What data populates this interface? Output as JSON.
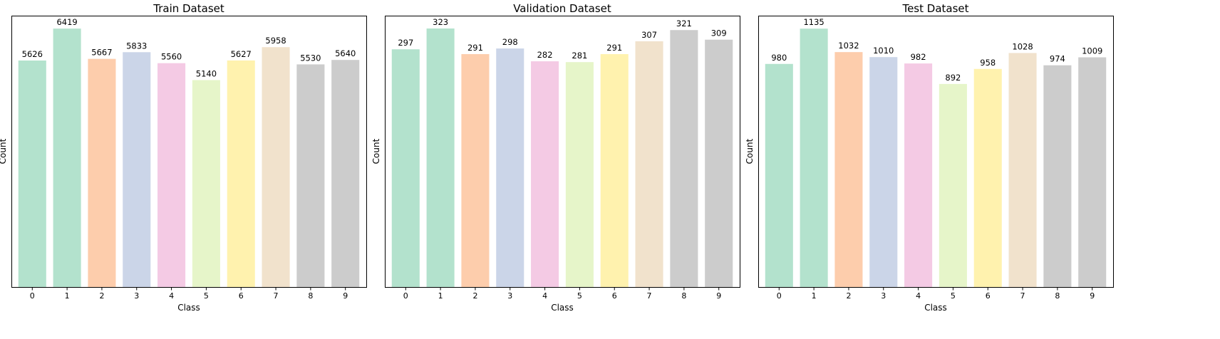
{
  "chart_data": [
    {
      "type": "bar",
      "title": "Train Dataset",
      "xlabel": "Class",
      "ylabel": "Count",
      "categories": [
        "0",
        "1",
        "2",
        "3",
        "4",
        "5",
        "6",
        "7",
        "8",
        "9"
      ],
      "values": [
        5626,
        6419,
        5667,
        5833,
        5560,
        5140,
        5627,
        5958,
        5530,
        5640
      ],
      "ylim": [
        0,
        6740
      ],
      "grid": false,
      "colors": [
        "#b3e2cd",
        "#b3e2cd",
        "#fdcdac",
        "#cbd5e8",
        "#f4cae4",
        "#e6f5c9",
        "#fff2ae",
        "#f1e2cc",
        "#cccccc",
        "#cccccc"
      ]
    },
    {
      "type": "bar",
      "title": "Validation Dataset",
      "xlabel": "Class",
      "ylabel": "Count",
      "categories": [
        "0",
        "1",
        "2",
        "3",
        "4",
        "5",
        "6",
        "7",
        "8",
        "9"
      ],
      "values": [
        297,
        323,
        291,
        298,
        282,
        281,
        291,
        307,
        321,
        309
      ],
      "ylim": [
        0,
        339
      ],
      "grid": false,
      "colors": [
        "#b3e2cd",
        "#b3e2cd",
        "#fdcdac",
        "#cbd5e8",
        "#f4cae4",
        "#e6f5c9",
        "#fff2ae",
        "#f1e2cc",
        "#cccccc",
        "#cccccc"
      ]
    },
    {
      "type": "bar",
      "title": "Test Dataset",
      "xlabel": "Class",
      "ylabel": "Count",
      "categories": [
        "0",
        "1",
        "2",
        "3",
        "4",
        "5",
        "6",
        "7",
        "8",
        "9"
      ],
      "values": [
        980,
        1135,
        1032,
        1010,
        982,
        892,
        958,
        1028,
        974,
        1009
      ],
      "ylim": [
        0,
        1192
      ],
      "grid": false,
      "colors": [
        "#b3e2cd",
        "#b3e2cd",
        "#fdcdac",
        "#cbd5e8",
        "#f4cae4",
        "#e6f5c9",
        "#fff2ae",
        "#f1e2cc",
        "#cccccc",
        "#cccccc"
      ]
    }
  ]
}
